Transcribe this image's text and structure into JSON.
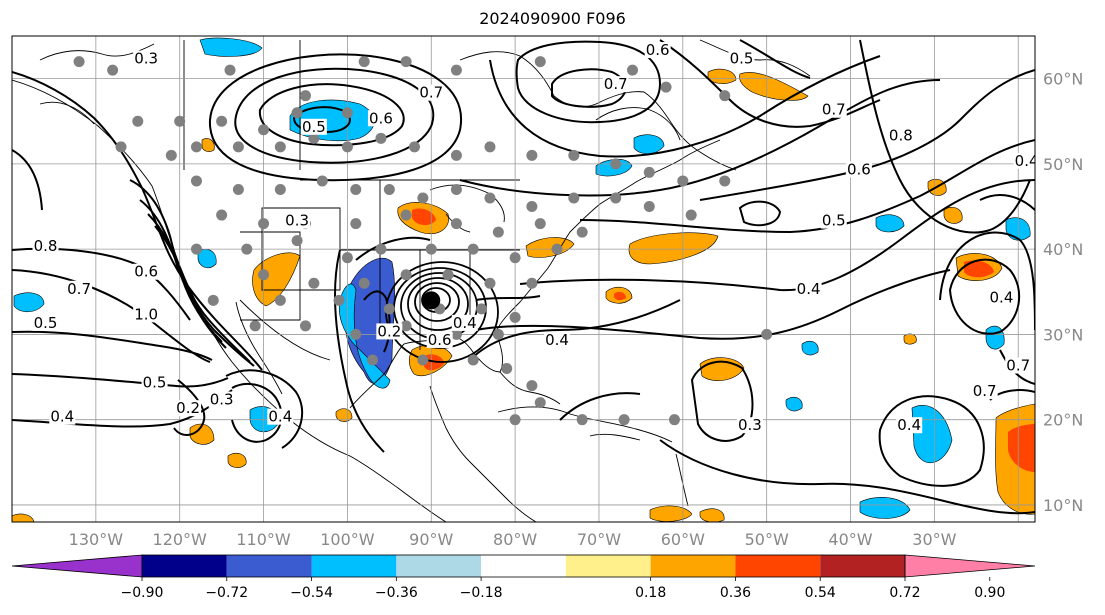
{
  "title": "2024090900 F096",
  "map": {
    "projection": "plate-carree",
    "lon_range": [
      -140,
      -18
    ],
    "lat_range": [
      8,
      65
    ],
    "grid": true,
    "lon_ticks": [
      {
        "lon": -130,
        "label": "130°W"
      },
      {
        "lon": -120,
        "label": "120°W"
      },
      {
        "lon": -110,
        "label": "110°W"
      },
      {
        "lon": -100,
        "label": "100°W"
      },
      {
        "lon": -90,
        "label": "90°W"
      },
      {
        "lon": -80,
        "label": "80°W"
      },
      {
        "lon": -70,
        "label": "70°W"
      },
      {
        "lon": -60,
        "label": "60°W"
      },
      {
        "lon": -50,
        "label": "50°W"
      },
      {
        "lon": -40,
        "label": "40°W"
      },
      {
        "lon": -30,
        "label": "30°W"
      }
    ],
    "lat_ticks": [
      {
        "lat": 60,
        "label": "60°N"
      },
      {
        "lat": 50,
        "label": "50°N"
      },
      {
        "lat": 40,
        "label": "40°N"
      },
      {
        "lat": 30,
        "label": "30°N"
      },
      {
        "lat": 20,
        "label": "20°N"
      },
      {
        "lat": 10,
        "label": "10°N"
      }
    ],
    "contour_labels": [
      {
        "lon": -124,
        "lat": 62,
        "text": "0.3"
      },
      {
        "lon": -90,
        "lat": 58,
        "text": "0.7"
      },
      {
        "lon": -96,
        "lat": 55,
        "text": "0.6"
      },
      {
        "lon": -104,
        "lat": 54,
        "text": "0.5"
      },
      {
        "lon": -63,
        "lat": 63,
        "text": "0.6"
      },
      {
        "lon": -68,
        "lat": 59,
        "text": "0.7"
      },
      {
        "lon": -53,
        "lat": 62,
        "text": "0.5"
      },
      {
        "lon": -42,
        "lat": 56,
        "text": "0.7"
      },
      {
        "lon": -34,
        "lat": 53,
        "text": "0.8"
      },
      {
        "lon": -39,
        "lat": 49,
        "text": "0.6"
      },
      {
        "lon": -42,
        "lat": 43,
        "text": "0.5"
      },
      {
        "lon": -45,
        "lat": 35,
        "text": "0.4"
      },
      {
        "lon": -106,
        "lat": 43,
        "text": "0.3"
      },
      {
        "lon": -136,
        "lat": 40,
        "text": "0.8"
      },
      {
        "lon": -132,
        "lat": 35,
        "text": "0.7"
      },
      {
        "lon": -136,
        "lat": 31,
        "text": "0.5"
      },
      {
        "lon": -124,
        "lat": 37,
        "text": "0.6"
      },
      {
        "lon": -124,
        "lat": 32,
        "text": "1.0"
      },
      {
        "lon": -123,
        "lat": 24,
        "text": "0.5"
      },
      {
        "lon": -119,
        "lat": 21,
        "text": "0.2"
      },
      {
        "lon": -115,
        "lat": 22,
        "text": "0.3"
      },
      {
        "lon": -108,
        "lat": 20,
        "text": "0.4"
      },
      {
        "lon": -134,
        "lat": 20,
        "text": "0.4"
      },
      {
        "lon": -95,
        "lat": 30,
        "text": "0.2"
      },
      {
        "lon": -89,
        "lat": 29,
        "text": "0.6"
      },
      {
        "lon": -86,
        "lat": 31,
        "text": "0.4"
      },
      {
        "lon": -75,
        "lat": 29,
        "text": "0.4"
      },
      {
        "lon": -52,
        "lat": 19,
        "text": "0.3"
      },
      {
        "lon": -33,
        "lat": 19,
        "text": "0.4"
      },
      {
        "lon": -22,
        "lat": 34,
        "text": "0.4"
      },
      {
        "lon": -20,
        "lat": 26,
        "text": "0.7"
      },
      {
        "lon": -24,
        "lat": 23,
        "text": "0.7"
      },
      {
        "lon": -19,
        "lat": 50,
        "text": "0.4"
      }
    ],
    "low_center": {
      "lon": -90,
      "lat": 34
    }
  },
  "colorbar": {
    "ticks": [
      "−0.90",
      "−0.72",
      "−0.54",
      "−0.36",
      "−0.18",
      "0.18",
      "0.36",
      "0.54",
      "0.72",
      "0.90"
    ],
    "colors": [
      "#9932cc",
      "#00008b",
      "#3b5bd1",
      "#00bfff",
      "#add8e6",
      "#ffffff",
      "#fff08c",
      "#ffa500",
      "#ff4500",
      "#b22222",
      "#ff7fa7"
    ],
    "extend": "both"
  }
}
